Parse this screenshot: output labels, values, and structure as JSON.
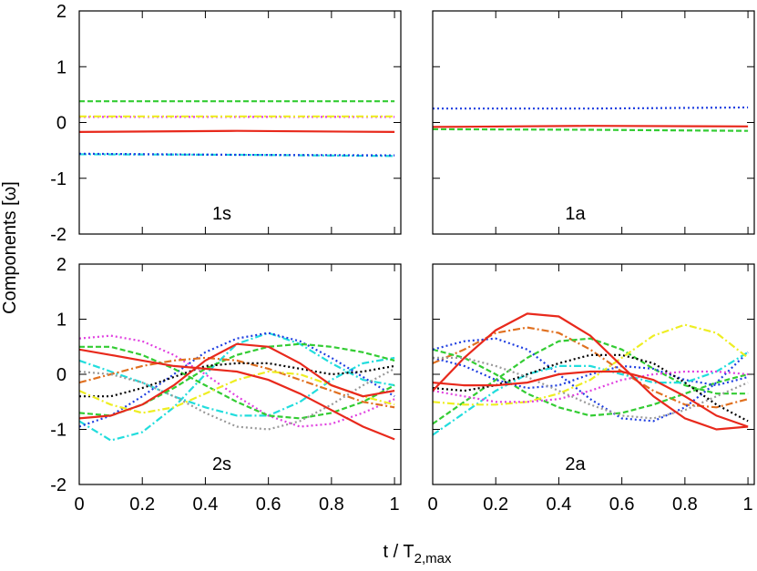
{
  "chart_data": [
    {
      "type": "line",
      "label": "1s",
      "ylabel": "Components [ω]",
      "x": [
        0,
        0.5,
        1
      ],
      "xlim": [
        0,
        1.02
      ],
      "ylim": [
        -2,
        2
      ],
      "xticks": [
        0,
        0.2,
        0.4,
        0.6,
        0.8,
        1
      ],
      "yticks": [
        -2,
        -1,
        0,
        1,
        2
      ],
      "series": [
        {
          "color": "#33cc33",
          "dash": "dashed",
          "values": [
            0.38,
            0.38,
            0.38
          ]
        },
        {
          "color": "#e040e0",
          "dash": "dotted",
          "values": [
            0.1,
            0.1,
            0.1
          ]
        },
        {
          "color": "#eeee22",
          "dash": "dashdot",
          "values": [
            0.11,
            0.11,
            0.11
          ]
        },
        {
          "color": "#e8291c",
          "dash": "solid",
          "values": [
            -0.17,
            -0.15,
            -0.17
          ]
        },
        {
          "color": "#22dddd",
          "dash": "dashdot",
          "values": [
            -0.57,
            -0.58,
            -0.6
          ]
        },
        {
          "color": "#1f3fe0",
          "dash": "dotted",
          "values": [
            -0.56,
            -0.58,
            -0.59
          ]
        }
      ]
    },
    {
      "type": "line",
      "label": "1a",
      "x": [
        0,
        0.5,
        1
      ],
      "xlim": [
        0,
        1.02
      ],
      "ylim": [
        -2,
        2
      ],
      "xticks": [
        0,
        0.2,
        0.4,
        0.6,
        0.8,
        1
      ],
      "yticks": [
        -2,
        -1,
        0,
        1,
        2
      ],
      "series": [
        {
          "color": "#1f3fe0",
          "dash": "dotted",
          "values": [
            0.25,
            0.25,
            0.27
          ]
        },
        {
          "color": "#e8291c",
          "dash": "solid",
          "values": [
            -0.08,
            -0.06,
            -0.07
          ]
        },
        {
          "color": "#33cc33",
          "dash": "dashed",
          "values": [
            -0.12,
            -0.13,
            -0.15
          ]
        }
      ]
    },
    {
      "type": "line",
      "label": "2s",
      "xlabel": "t / T",
      "xlabel_sub": "2,max",
      "x": [
        0,
        0.1,
        0.2,
        0.3,
        0.4,
        0.5,
        0.6,
        0.7,
        0.8,
        0.9,
        1.0
      ],
      "xlim": [
        0,
        1.02
      ],
      "ylim": [
        -2,
        2
      ],
      "xticks": [
        0,
        0.2,
        0.4,
        0.6,
        0.8,
        1
      ],
      "yticks": [
        -2,
        -1,
        0,
        1,
        2
      ],
      "series": [
        {
          "color": "#e040e0",
          "dash": "dotted",
          "values": [
            0.65,
            0.7,
            0.6,
            0.35,
            0,
            -0.4,
            -0.75,
            -0.95,
            -0.9,
            -0.7,
            -0.45
          ]
        },
        {
          "color": "#22dddd",
          "dash": "dashdot",
          "values": [
            -0.85,
            -1.2,
            -1.05,
            -0.6,
            0,
            0.55,
            0.75,
            0.55,
            0.2,
            -0.1,
            -0.2
          ]
        },
        {
          "color": "#22dddd",
          "dash": "dashdot",
          "values": [
            0.25,
            0.05,
            -0.15,
            -0.4,
            -0.6,
            -0.75,
            -0.75,
            -0.5,
            -0.1,
            0.2,
            0.3
          ]
        },
        {
          "color": "#1f3fe0",
          "dash": "dotted",
          "values": [
            -0.95,
            -0.75,
            -0.4,
            0,
            0.4,
            0.65,
            0.75,
            0.6,
            0.3,
            -0.05,
            -0.4
          ]
        },
        {
          "color": "#33cc33",
          "dash": "dashed",
          "values": [
            -0.7,
            -0.75,
            -0.55,
            -0.25,
            0.1,
            0.35,
            0.5,
            0.55,
            0.5,
            0.4,
            0.25
          ]
        },
        {
          "color": "#33cc33",
          "dash": "dashed",
          "values": [
            0.5,
            0.5,
            0.35,
            0.1,
            -0.2,
            -0.5,
            -0.75,
            -0.8,
            -0.7,
            -0.5,
            -0.2
          ]
        },
        {
          "color": "#e07020",
          "dash": "dashdot",
          "values": [
            -0.15,
            0,
            0.15,
            0.25,
            0.3,
            0.25,
            0.1,
            -0.1,
            -0.3,
            -0.5,
            -0.6
          ]
        },
        {
          "color": "#000000",
          "dash": "dotted",
          "values": [
            -0.4,
            -0.4,
            -0.25,
            -0.05,
            0.15,
            0.2,
            0.2,
            0.1,
            0,
            0.05,
            0.15
          ]
        },
        {
          "color": "#999999",
          "dash": "dotted",
          "values": [
            0.05,
            0,
            -0.15,
            -0.4,
            -0.7,
            -0.95,
            -1.0,
            -0.85,
            -0.55,
            -0.2,
            0.1
          ]
        },
        {
          "color": "#eeee22",
          "dash": "dashdot",
          "values": [
            -0.3,
            -0.55,
            -0.7,
            -0.6,
            -0.35,
            -0.1,
            0.05,
            0,
            -0.2,
            -0.4,
            -0.55
          ]
        },
        {
          "color": "#e8291c",
          "dash": "solid",
          "values": [
            0.45,
            0.35,
            0.25,
            0.15,
            0.1,
            0.05,
            -0.1,
            -0.35,
            -0.65,
            -0.95,
            -1.18
          ]
        },
        {
          "color": "#e8291c",
          "dash": "solid",
          "values": [
            -0.8,
            -0.75,
            -0.55,
            -0.2,
            0.25,
            0.55,
            0.5,
            0.2,
            -0.2,
            -0.4,
            -0.3
          ]
        }
      ]
    },
    {
      "type": "line",
      "label": "2a",
      "x": [
        0,
        0.1,
        0.2,
        0.3,
        0.4,
        0.5,
        0.6,
        0.7,
        0.8,
        0.9,
        1.0
      ],
      "xlim": [
        0,
        1.02
      ],
      "ylim": [
        -2,
        2
      ],
      "xticks": [
        0,
        0.2,
        0.4,
        0.6,
        0.8,
        1
      ],
      "yticks": [
        -2,
        -1,
        0,
        1,
        2
      ],
      "series": [
        {
          "color": "#e07020",
          "dash": "dashdot",
          "values": [
            0.2,
            0.45,
            0.75,
            0.85,
            0.75,
            0.45,
            0.05,
            -0.3,
            -0.55,
            -0.6,
            -0.45
          ]
        },
        {
          "color": "#33cc33",
          "dash": "dashed",
          "values": [
            -0.9,
            -0.5,
            -0.1,
            0.3,
            0.6,
            0.65,
            0.45,
            0.1,
            -0.2,
            -0.35,
            -0.35
          ]
        },
        {
          "color": "#33cc33",
          "dash": "dashed",
          "values": [
            0.45,
            0.3,
            0,
            -0.35,
            -0.6,
            -0.75,
            -0.7,
            -0.55,
            -0.35,
            -0.15,
            0
          ]
        },
        {
          "color": "#1f3fe0",
          "dash": "dotted",
          "values": [
            0.45,
            0.6,
            0.65,
            0.45,
            0,
            -0.45,
            -0.8,
            -0.85,
            -0.6,
            -0.15,
            0.4
          ]
        },
        {
          "color": "#1f3fe0",
          "dash": "dotted",
          "values": [
            0.3,
            0.15,
            -0.1,
            -0.25,
            -0.2,
            0,
            0.15,
            0.1,
            -0.1,
            -0.2,
            -0.05
          ]
        },
        {
          "color": "#22dddd",
          "dash": "dashdot",
          "values": [
            -1.1,
            -0.7,
            -0.3,
            0,
            0.15,
            0.15,
            0,
            -0.15,
            -0.15,
            0.05,
            0.4
          ]
        },
        {
          "color": "#000000",
          "dash": "dotted",
          "values": [
            -0.25,
            -0.3,
            -0.2,
            0,
            0.2,
            0.35,
            0.35,
            0.2,
            -0.15,
            -0.55,
            -0.85
          ]
        },
        {
          "color": "#eeee22",
          "dash": "dashdot",
          "values": [
            -0.5,
            -0.55,
            -0.55,
            -0.5,
            -0.35,
            -0.1,
            0.3,
            0.7,
            0.9,
            0.75,
            0.3
          ]
        },
        {
          "color": "#e040e0",
          "dash": "dotted",
          "values": [
            -0.3,
            -0.4,
            -0.5,
            -0.5,
            -0.45,
            -0.3,
            -0.1,
            0,
            0.05,
            0.05,
            0
          ]
        },
        {
          "color": "#999999",
          "dash": "dotted",
          "values": [
            0.3,
            0.3,
            0.15,
            -0.05,
            -0.3,
            -0.55,
            -0.75,
            -0.8,
            -0.65,
            -0.4,
            -0.15
          ]
        },
        {
          "color": "#e8291c",
          "dash": "solid",
          "values": [
            -0.3,
            0.3,
            0.8,
            1.1,
            1.05,
            0.7,
            0.15,
            -0.4,
            -0.8,
            -1.0,
            -0.95
          ]
        },
        {
          "color": "#e8291c",
          "dash": "solid",
          "values": [
            -0.15,
            -0.2,
            -0.2,
            -0.15,
            0,
            0.05,
            0.05,
            -0.1,
            -0.4,
            -0.75,
            -0.95
          ]
        }
      ]
    }
  ]
}
